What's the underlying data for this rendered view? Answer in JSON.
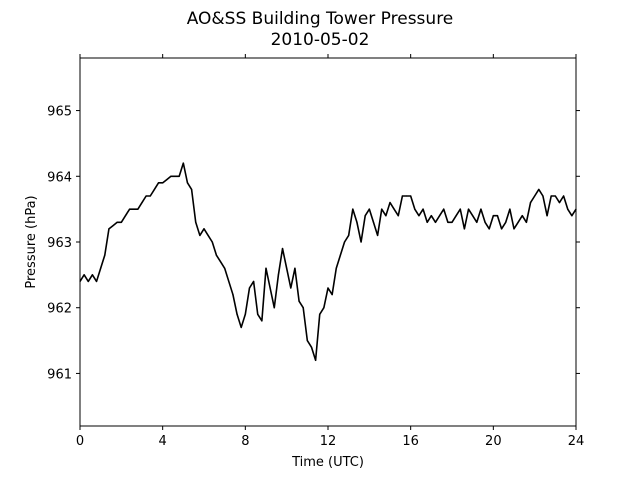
{
  "chart_data": {
    "type": "line",
    "title": "AO&SS Building Tower Pressure",
    "subtitle": "2010-05-02",
    "xlabel": "Time (UTC)",
    "ylabel": "Pressure (hPa)",
    "xlim": [
      0,
      24
    ],
    "ylim": [
      960.2,
      965.8
    ],
    "xticks": [
      0,
      4,
      8,
      12,
      16,
      20,
      24
    ],
    "yticks": [
      961,
      962,
      963,
      964,
      965
    ],
    "grid": false,
    "line_color": "#000000",
    "series": [
      {
        "x": [
          0,
          0.2,
          0.4,
          0.6,
          0.8,
          1.0,
          1.2,
          1.4,
          1.6,
          1.8,
          2.0,
          2.2,
          2.4,
          2.6,
          2.8,
          3.0,
          3.2,
          3.4,
          3.6,
          3.8,
          4.0,
          4.2,
          4.4,
          4.6,
          4.8,
          5.0,
          5.2,
          5.4,
          5.6,
          5.8,
          6.0,
          6.2,
          6.4,
          6.6,
          6.8,
          7.0,
          7.2,
          7.4,
          7.6,
          7.8,
          8.0,
          8.2,
          8.4,
          8.6,
          8.8,
          9.0,
          9.2,
          9.4,
          9.6,
          9.8,
          10.0,
          10.2,
          10.4,
          10.6,
          10.8,
          11.0,
          11.2,
          11.4,
          11.6,
          11.8,
          12.0,
          12.2,
          12.4,
          12.6,
          12.8,
          13.0,
          13.2,
          13.4,
          13.6,
          13.8,
          14.0,
          14.2,
          14.4,
          14.6,
          14.8,
          15.0,
          15.2,
          15.4,
          15.6,
          15.8,
          16.0,
          16.2,
          16.4,
          16.6,
          16.8,
          17.0,
          17.2,
          17.4,
          17.6,
          17.8,
          18.0,
          18.2,
          18.4,
          18.6,
          18.8,
          19.0,
          19.2,
          19.4,
          19.6,
          19.8,
          20.0,
          20.2,
          20.4,
          20.6,
          20.8,
          21.0,
          21.2,
          21.4,
          21.6,
          21.8,
          22.0,
          22.2,
          22.4,
          22.6,
          22.8,
          23.0,
          23.2,
          23.4,
          23.6,
          23.8,
          24.0
        ],
        "y": [
          962.4,
          962.5,
          962.4,
          962.5,
          962.4,
          962.6,
          962.8,
          963.2,
          963.25,
          963.3,
          963.3,
          963.4,
          963.5,
          963.5,
          963.5,
          963.6,
          963.7,
          963.7,
          963.8,
          963.9,
          963.9,
          963.95,
          964.0,
          964.0,
          964.0,
          964.2,
          963.9,
          963.8,
          963.3,
          963.1,
          963.2,
          963.1,
          963.0,
          962.8,
          962.7,
          962.6,
          962.4,
          962.2,
          961.9,
          961.7,
          961.9,
          962.3,
          962.4,
          961.9,
          961.8,
          962.6,
          962.3,
          962.0,
          962.5,
          962.9,
          962.6,
          962.3,
          962.6,
          962.1,
          962.0,
          961.5,
          961.4,
          961.2,
          961.9,
          962.0,
          962.3,
          962.2,
          962.6,
          962.8,
          963.0,
          963.1,
          963.5,
          963.3,
          963.0,
          963.4,
          963.5,
          963.3,
          963.1,
          963.5,
          963.4,
          963.6,
          963.5,
          963.4,
          963.7,
          963.7,
          963.7,
          963.5,
          963.4,
          963.5,
          963.3,
          963.4,
          963.3,
          963.4,
          963.5,
          963.3,
          963.3,
          963.4,
          963.5,
          963.2,
          963.5,
          963.4,
          963.3,
          963.5,
          963.3,
          963.2,
          963.4,
          963.4,
          963.2,
          963.3,
          963.5,
          963.2,
          963.3,
          963.4,
          963.3,
          963.6,
          963.7,
          963.8,
          963.7,
          963.4,
          963.7,
          963.7,
          963.6,
          963.7,
          963.5,
          963.4,
          963.5
        ]
      }
    ]
  }
}
